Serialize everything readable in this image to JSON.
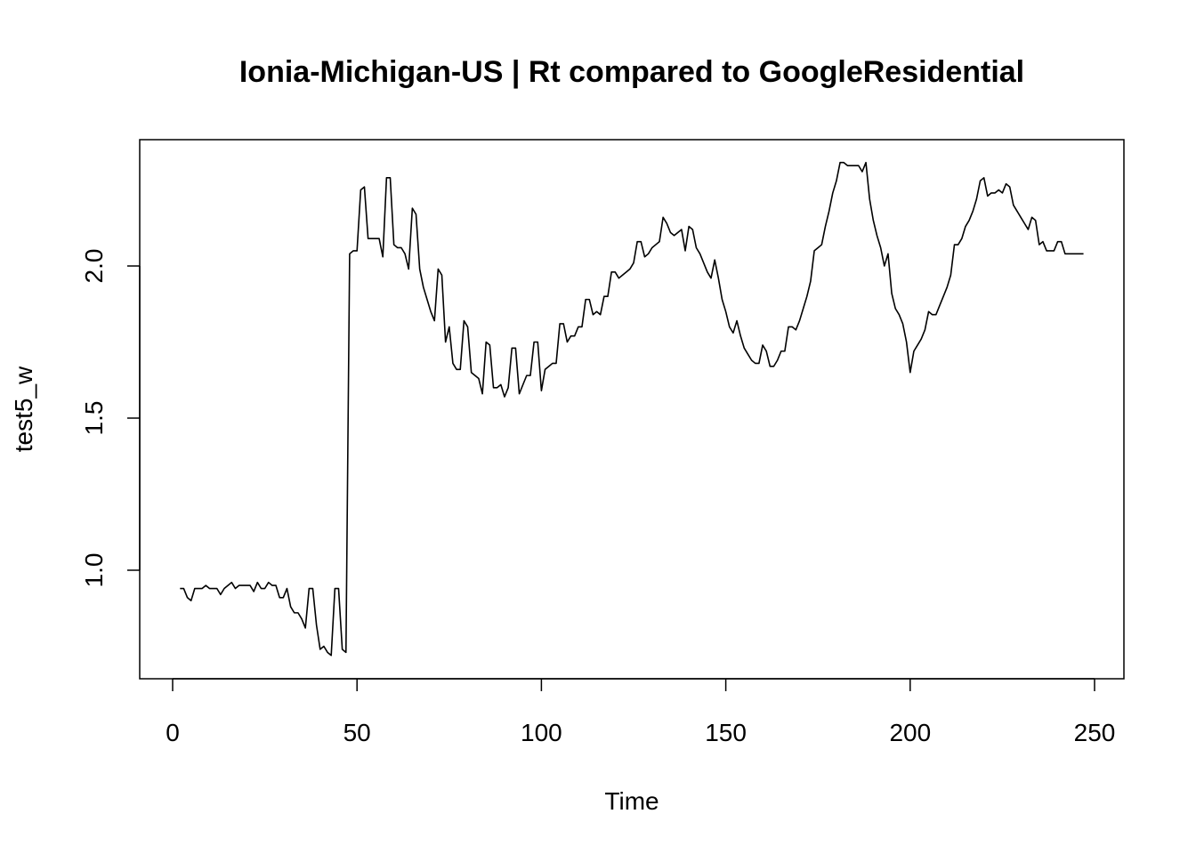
{
  "chart_data": {
    "type": "line",
    "title": "Ionia-Michigan-US | Rt compared to GoogleResidential",
    "xlabel": "Time",
    "ylabel": "test5_w",
    "xlim": [
      0,
      250
    ],
    "ylim": [
      0.7,
      2.35
    ],
    "x_ticks": [
      0,
      50,
      100,
      150,
      200,
      250
    ],
    "x_tick_labels": [
      "0",
      "50",
      "100",
      "150",
      "200",
      "250"
    ],
    "y_ticks": [
      1.0,
      1.5,
      2.0
    ],
    "y_tick_labels": [
      "1.0",
      "1.5",
      "2.0"
    ],
    "grid": false,
    "legend": "none",
    "line_color": "#000000",
    "x_start": 2,
    "values": [
      0.94,
      0.94,
      0.91,
      0.9,
      0.94,
      0.94,
      0.94,
      0.95,
      0.94,
      0.94,
      0.94,
      0.92,
      0.94,
      0.95,
      0.96,
      0.94,
      0.95,
      0.95,
      0.95,
      0.95,
      0.93,
      0.96,
      0.94,
      0.94,
      0.96,
      0.95,
      0.95,
      0.91,
      0.91,
      0.94,
      0.88,
      0.86,
      0.86,
      0.84,
      0.81,
      0.94,
      0.94,
      0.82,
      0.74,
      0.75,
      0.73,
      0.72,
      0.94,
      0.94,
      0.74,
      0.73,
      2.04,
      2.05,
      2.05,
      2.25,
      2.26,
      2.09,
      2.09,
      2.09,
      2.09,
      2.03,
      2.29,
      2.29,
      2.07,
      2.06,
      2.06,
      2.04,
      1.99,
      2.19,
      2.17,
      1.99,
      1.93,
      1.89,
      1.85,
      1.82,
      1.99,
      1.97,
      1.75,
      1.8,
      1.68,
      1.66,
      1.66,
      1.82,
      1.8,
      1.65,
      1.64,
      1.63,
      1.58,
      1.75,
      1.74,
      1.6,
      1.6,
      1.61,
      1.57,
      1.6,
      1.73,
      1.73,
      1.58,
      1.61,
      1.64,
      1.64,
      1.75,
      1.75,
      1.59,
      1.66,
      1.67,
      1.68,
      1.68,
      1.81,
      1.81,
      1.75,
      1.77,
      1.77,
      1.8,
      1.8,
      1.89,
      1.89,
      1.84,
      1.85,
      1.84,
      1.9,
      1.9,
      1.98,
      1.98,
      1.96,
      1.97,
      1.98,
      1.99,
      2.01,
      2.08,
      2.08,
      2.03,
      2.04,
      2.06,
      2.07,
      2.08,
      2.16,
      2.14,
      2.11,
      2.1,
      2.11,
      2.12,
      2.05,
      2.13,
      2.12,
      2.06,
      2.04,
      2.01,
      1.98,
      1.96,
      2.02,
      1.96,
      1.89,
      1.85,
      1.8,
      1.78,
      1.82,
      1.77,
      1.73,
      1.71,
      1.69,
      1.68,
      1.68,
      1.74,
      1.72,
      1.67,
      1.67,
      1.69,
      1.72,
      1.72,
      1.8,
      1.8,
      1.79,
      1.82,
      1.86,
      1.9,
      1.95,
      2.05,
      2.06,
      2.07,
      2.13,
      2.18,
      2.24,
      2.28,
      2.34,
      2.34,
      2.33,
      2.33,
      2.33,
      2.33,
      2.31,
      2.34,
      2.22,
      2.15,
      2.1,
      2.06,
      2.0,
      2.04,
      1.91,
      1.86,
      1.84,
      1.81,
      1.75,
      1.65,
      1.72,
      1.74,
      1.76,
      1.79,
      1.85,
      1.84,
      1.84,
      1.87,
      1.9,
      1.93,
      1.97,
      2.07,
      2.07,
      2.09,
      2.13,
      2.15,
      2.18,
      2.22,
      2.28,
      2.29,
      2.23,
      2.24,
      2.24,
      2.25,
      2.24,
      2.27,
      2.26,
      2.2,
      2.18,
      2.16,
      2.14,
      2.12,
      2.16,
      2.15,
      2.07,
      2.08,
      2.05,
      2.05,
      2.05,
      2.08,
      2.08,
      2.04,
      2.04,
      2.04,
      2.04,
      2.04,
      2.04
    ]
  }
}
